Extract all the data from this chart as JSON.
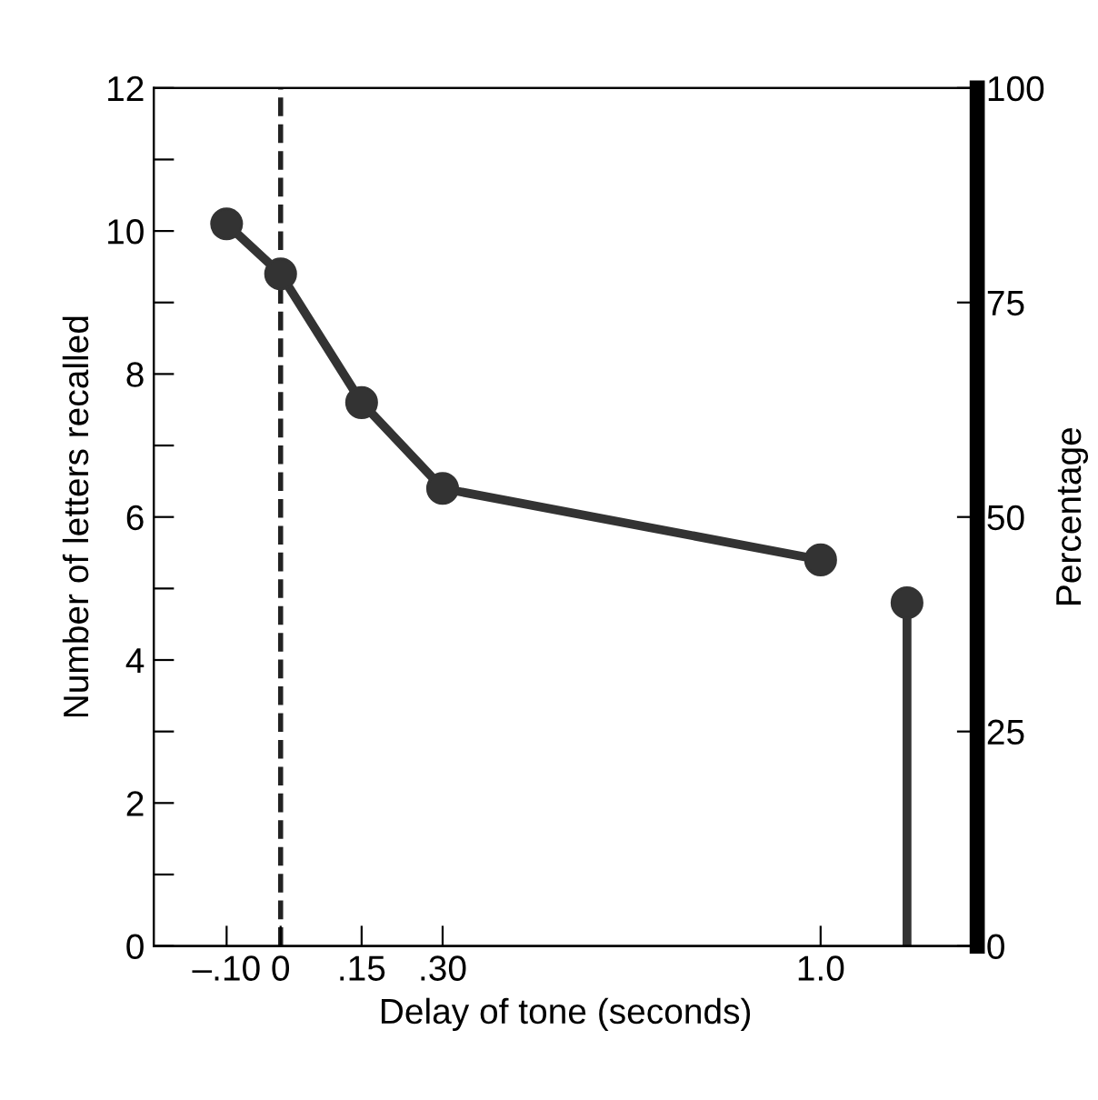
{
  "chart_data": {
    "type": "line",
    "xlabel": "Delay of tone (seconds)",
    "ylabel": "Number of letters recalled",
    "y2label": "Percentage",
    "xlim": [
      -0.235,
      1.29
    ],
    "ylim": [
      0,
      12
    ],
    "y2lim": [
      0,
      100
    ],
    "xticks": [
      {
        "value": -0.1,
        "label": "–.10"
      },
      0,
      {
        "value": 0.15,
        "label": ".15"
      },
      {
        "value": 0.3,
        "label": ".30"
      },
      {
        "value": 1.0,
        "label": "1.0"
      }
    ],
    "yticks": [
      0,
      {
        "value": 1,
        "label": null
      },
      2,
      {
        "value": 3,
        "label": null
      },
      4,
      {
        "value": 5,
        "label": null
      },
      6,
      {
        "value": 7,
        "label": null
      },
      8,
      {
        "value": 9,
        "label": null
      },
      10,
      {
        "value": 11,
        "label": null
      },
      12
    ],
    "y2ticks": [
      0,
      25,
      50,
      75,
      100
    ],
    "marker": "circle",
    "line_style": "solid",
    "grid": false,
    "legend": false,
    "ref_lines": [
      {
        "axis": "x",
        "value": 0,
        "line_style": "dashed",
        "color": "#222222"
      }
    ],
    "series": [
      {
        "color": "#333333",
        "x": [
          -0.1,
          0,
          0.15,
          0.3,
          1.0
        ],
        "values": [
          10.1,
          9.4,
          7.6,
          6.4,
          5.4
        ]
      },
      {
        "type": "lollipop",
        "color": "#333333",
        "x": [
          1.16
        ],
        "values": [
          4.8
        ]
      }
    ]
  }
}
